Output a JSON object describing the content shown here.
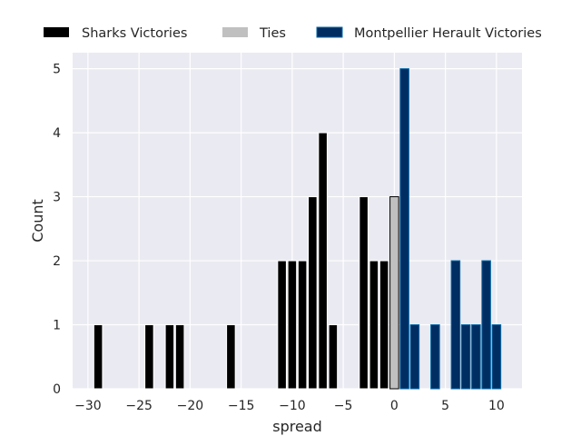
{
  "chart_data": {
    "type": "bar",
    "xlabel": "spread",
    "ylabel": "Count",
    "xlim": [
      -31.5,
      12.5
    ],
    "ylim": [
      0,
      5.25
    ],
    "xticks": [
      -30,
      -25,
      -20,
      -15,
      -10,
      -5,
      0,
      5,
      10
    ],
    "xtick_labels": [
      "−30",
      "−25",
      "−20",
      "−15",
      "−10",
      "−5",
      "0",
      "5",
      "10"
    ],
    "yticks": [
      0,
      1,
      2,
      3,
      4,
      5
    ],
    "ytick_labels": [
      "0",
      "1",
      "2",
      "3",
      "4",
      "5"
    ],
    "grid": true,
    "legend_placement": "top (above plot, horizontal)",
    "bar_width": 0.85,
    "series": [
      {
        "name": "Sharks Victories",
        "color": "#000000",
        "edge_color": "#ffffff",
        "x": [
          -29,
          -24,
          -22,
          -21,
          -16,
          -11,
          -10,
          -9,
          -8,
          -7,
          -6,
          -3,
          -2,
          -1
        ],
        "values": [
          1,
          1,
          1,
          1,
          1,
          2,
          2,
          2,
          3,
          4,
          1,
          3,
          2,
          2
        ]
      },
      {
        "name": "Ties",
        "color": "#c0c0c0",
        "edge_color": "#000000",
        "x": [
          0
        ],
        "values": [
          3
        ]
      },
      {
        "name": "Montpellier Herault Victories",
        "color": "#002d62",
        "edge_color": "#0a6aa8",
        "x": [
          1,
          2,
          4,
          6,
          7,
          8,
          9,
          10
        ],
        "values": [
          5,
          1,
          1,
          2,
          1,
          1,
          2,
          1
        ]
      }
    ]
  }
}
